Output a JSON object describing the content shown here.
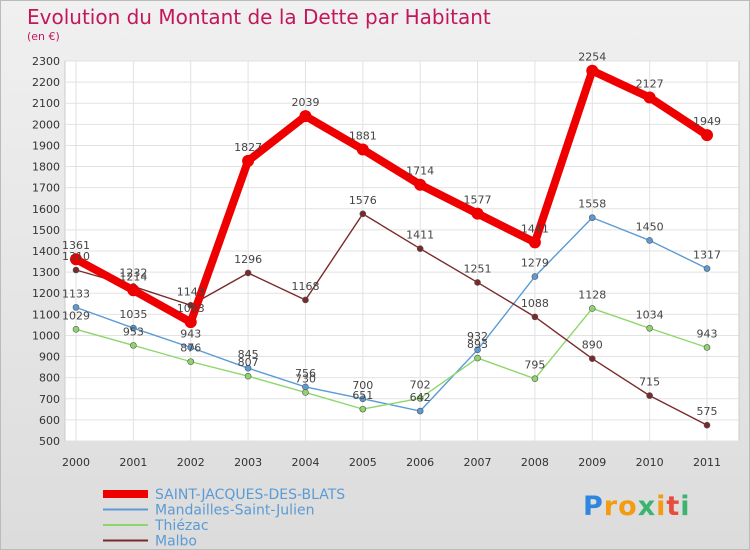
{
  "chart_data": {
    "type": "line",
    "title": "Evolution du Montant de la Dette par Habitant",
    "subtitle": "(en €)",
    "categories": [
      "2000",
      "2001",
      "2002",
      "2003",
      "2004",
      "2005",
      "2006",
      "2007",
      "2008",
      "2009",
      "2010",
      "2011"
    ],
    "ylim": [
      500,
      2300
    ],
    "yticks": [
      500,
      600,
      700,
      800,
      900,
      1000,
      1100,
      1200,
      1300,
      1400,
      1500,
      1600,
      1700,
      1800,
      1900,
      2000,
      2100,
      2200,
      2300
    ],
    "grid": true,
    "legend_position": "bottom-left",
    "series": [
      {
        "name": "SAINT-JACQUES-DES-BLATS",
        "color": "#ee0000",
        "emphasis": true,
        "values": [
          1361,
          1214,
          1063,
          1827,
          2039,
          1881,
          1714,
          1577,
          1441,
          2254,
          2127,
          1949
        ]
      },
      {
        "name": "Mandailles-Saint-Julien",
        "color": "#5b9bd5",
        "values": [
          1133,
          1035,
          943,
          845,
          756,
          700,
          642,
          932,
          1279,
          1558,
          1450,
          1317
        ]
      },
      {
        "name": "Thiézac",
        "color": "#8ed66b",
        "values": [
          1029,
          953,
          876,
          807,
          730,
          651,
          702,
          893,
          795,
          1128,
          1034,
          943
        ]
      },
      {
        "name": "Malbo",
        "color": "#7a2a2a",
        "values": [
          1310,
          1232,
          1143,
          1296,
          1168,
          1576,
          1411,
          1251,
          1088,
          890,
          715,
          575
        ]
      }
    ]
  },
  "logo": {
    "text": "Proxiti",
    "letter_colors": [
      "#2e86de",
      "#f39c12",
      "#f39c12",
      "#3cb371",
      "#f39c12",
      "#e74c3c",
      "#3cb371"
    ]
  }
}
